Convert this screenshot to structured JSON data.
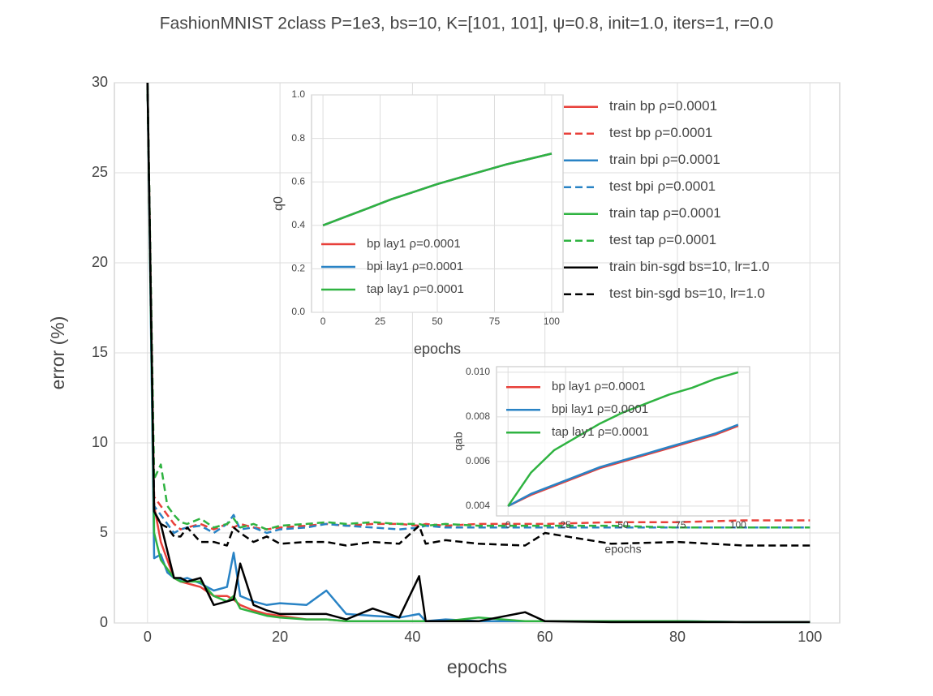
{
  "chart_data": [
    {
      "type": "line",
      "title": "FashionMNIST 2class P=1e3, bs=10, K=[101, 101], ψ=0.8, init=1.0, iters=1, r=0.0",
      "x_label": "epochs",
      "y_label": "error (%)",
      "grid": true,
      "legend": "upper right",
      "xlim": [
        -5,
        104.5
      ],
      "xticks": [
        0,
        20,
        40,
        60,
        80,
        100
      ],
      "ylim": [
        0,
        30
      ],
      "yticks": [
        0,
        5,
        10,
        15,
        20,
        25,
        30
      ],
      "x": [
        0,
        1,
        2,
        3,
        4,
        5,
        6,
        8,
        10,
        12,
        13,
        14,
        16,
        18,
        20,
        24,
        27,
        30,
        34,
        38,
        41,
        42,
        45,
        50,
        57,
        60,
        70,
        80,
        90,
        100
      ],
      "series": [
        {
          "name": "train bp ρ=0.0001",
          "color": "#e8403a",
          "linestyle": "solid",
          "values": [
            30,
            6.5,
            4.5,
            3.5,
            2.5,
            2.3,
            2.2,
            2.0,
            1.5,
            1.5,
            1.3,
            1.0,
            0.7,
            0.5,
            0.4,
            0.2,
            0.2,
            0.1,
            0.1,
            0.1,
            0.1,
            0.1,
            0.1,
            0.1,
            0.1,
            0.1,
            0.1,
            0.1,
            null,
            null
          ]
        },
        {
          "name": "test bp ρ=0.0001",
          "color": "#e8403a",
          "linestyle": "dashed",
          "values": [
            30,
            7,
            6.5,
            6,
            5.5,
            5.2,
            5.3,
            5.5,
            5.2,
            5.5,
            5.3,
            5.5,
            5.3,
            5.2,
            5.3,
            5.4,
            5.5,
            5.4,
            5.5,
            5.5,
            5.4,
            5.5,
            5.4,
            5.5,
            5.5,
            5.5,
            5.6,
            5.6,
            5.7,
            5.7
          ]
        },
        {
          "name": "train bpi ρ=0.0001",
          "color": "#2983c5",
          "linestyle": "solid",
          "values": [
            30,
            3.6,
            3.8,
            2.8,
            2.5,
            2.4,
            2.5,
            2.2,
            1.8,
            2.0,
            3.9,
            1.5,
            1.2,
            1.0,
            1.1,
            1.0,
            1.8,
            0.5,
            0.4,
            0.3,
            0.5,
            0.1,
            0.2,
            0.1,
            0.1,
            0.1,
            0.1,
            0.1,
            0.05,
            0.05
          ]
        },
        {
          "name": "test bpi ρ=0.0001",
          "color": "#2983c5",
          "linestyle": "dashed",
          "values": [
            30,
            6.5,
            6,
            5.5,
            5,
            5.2,
            5.3,
            5.4,
            5.0,
            5.5,
            6.0,
            5.2,
            5.3,
            5.0,
            5.2,
            5.3,
            5.5,
            5.4,
            5.3,
            5.2,
            5.3,
            5.4,
            5.3,
            5.3,
            5.3,
            5.3,
            5.3,
            5.3,
            5.3,
            5.3
          ]
        },
        {
          "name": "train tap ρ=0.0001",
          "color": "#2fb341",
          "linestyle": "solid",
          "values": [
            30,
            5,
            3.5,
            3,
            2.5,
            2.3,
            2.3,
            2.3,
            1.5,
            1.2,
            1.5,
            0.8,
            0.6,
            0.4,
            0.3,
            0.2,
            0.2,
            0.1,
            0.1,
            0.1,
            0.1,
            0.1,
            0.1,
            0.3,
            0.1,
            0.1,
            0.1,
            0.1,
            0.05,
            0.05
          ]
        },
        {
          "name": "test tap ρ=0.0001",
          "color": "#2fb341",
          "linestyle": "dashed",
          "values": [
            30,
            8,
            8.8,
            6.5,
            6,
            5.6,
            5.5,
            5.8,
            5.3,
            5.5,
            5.8,
            5.3,
            5.5,
            5.2,
            5.4,
            5.5,
            5.6,
            5.5,
            5.6,
            5.5,
            5.5,
            5.4,
            5.5,
            5.4,
            5.4,
            5.4,
            5.4,
            5.3,
            5.3,
            5.3
          ]
        },
        {
          "name": "train bin-sgd bs=10, lr=1.0",
          "color": "#000000",
          "linestyle": "solid",
          "values": [
            30,
            6.2,
            5.5,
            4,
            2.5,
            2.5,
            2.3,
            2.5,
            1.0,
            1.2,
            1.3,
            3.3,
            1.0,
            0.7,
            0.5,
            0.5,
            0.5,
            0.2,
            0.8,
            0.3,
            2.6,
            0.1,
            0.1,
            0.1,
            0.6,
            0.1,
            0.05,
            0.05,
            0.05,
            0.05
          ]
        },
        {
          "name": "test bin-sgd bs=10, lr=1.0",
          "color": "#000000",
          "linestyle": "dashed",
          "values": [
            30,
            6.2,
            5.5,
            5.3,
            4.8,
            4.8,
            5.3,
            4.5,
            4.5,
            4.3,
            5.3,
            5.0,
            4.5,
            4.8,
            4.4,
            4.5,
            4.5,
            4.3,
            4.5,
            4.4,
            5.4,
            4.4,
            4.6,
            4.4,
            4.3,
            5.0,
            4.4,
            4.5,
            4.3,
            4.3
          ]
        }
      ]
    },
    {
      "type": "line",
      "x_label": "epochs",
      "y_label": "q0",
      "grid": true,
      "legend": "lower left",
      "xlim": [
        -5,
        105
      ],
      "xticks": [
        0,
        25,
        50,
        75,
        100
      ],
      "ylim": [
        0,
        1.0
      ],
      "yticks": [
        {
          "value": 0,
          "label": "0.0"
        },
        0.2,
        0.4,
        0.6,
        0.8,
        {
          "value": 1,
          "label": "1.0"
        }
      ],
      "x": [
        0,
        10,
        20,
        30,
        40,
        50,
        60,
        70,
        80,
        90,
        100
      ],
      "series": [
        {
          "name": "bp lay1 ρ=0.0001",
          "color": "#e8403a",
          "linestyle": "solid",
          "values": [
            0.4,
            0.44,
            0.48,
            0.52,
            0.555,
            0.59,
            0.62,
            0.65,
            0.68,
            0.705,
            0.73
          ]
        },
        {
          "name": "bpi lay1 ρ=0.0001",
          "color": "#2983c5",
          "linestyle": "solid",
          "values": [
            0.4,
            0.44,
            0.48,
            0.52,
            0.555,
            0.59,
            0.62,
            0.65,
            0.68,
            0.705,
            0.73
          ]
        },
        {
          "name": "tap lay1 ρ=0.0001",
          "color": "#2fb341",
          "linestyle": "solid",
          "values": [
            0.4,
            0.44,
            0.48,
            0.52,
            0.555,
            0.59,
            0.62,
            0.65,
            0.68,
            0.705,
            0.73
          ]
        }
      ]
    },
    {
      "type": "line",
      "x_label": "epochs",
      "y_label": "qab",
      "grid": true,
      "legend": "upper left",
      "xlim": [
        -5,
        105
      ],
      "xticks": [
        0,
        25,
        50,
        75,
        100
      ],
      "ylim": [
        0.00356,
        0.01025
      ],
      "yticks": [
        0.004,
        0.006,
        0.008,
        {
          "value": 0.01,
          "label": "0.010"
        }
      ],
      "x": [
        0,
        10,
        20,
        30,
        40,
        50,
        60,
        70,
        80,
        90,
        100
      ],
      "series": [
        {
          "name": "bp lay1 ρ=0.0001",
          "color": "#e8403a",
          "linestyle": "solid",
          "values": [
            0.004,
            0.0045,
            0.0049,
            0.0053,
            0.0057,
            0.006,
            0.0063,
            0.0066,
            0.0069,
            0.0072,
            0.0076
          ]
        },
        {
          "name": "bpi lay1 ρ=0.0001",
          "color": "#2983c5",
          "linestyle": "solid",
          "values": [
            0.004,
            0.00455,
            0.00495,
            0.00535,
            0.00575,
            0.00605,
            0.00635,
            0.00665,
            0.00695,
            0.00725,
            0.00765
          ]
        },
        {
          "name": "tap lay1 ρ=0.0001",
          "color": "#2fb341",
          "linestyle": "solid",
          "values": [
            0.004,
            0.0055,
            0.0065,
            0.0071,
            0.0077,
            0.0082,
            0.0086,
            0.009,
            0.0093,
            0.0097,
            0.01
          ]
        }
      ]
    }
  ]
}
